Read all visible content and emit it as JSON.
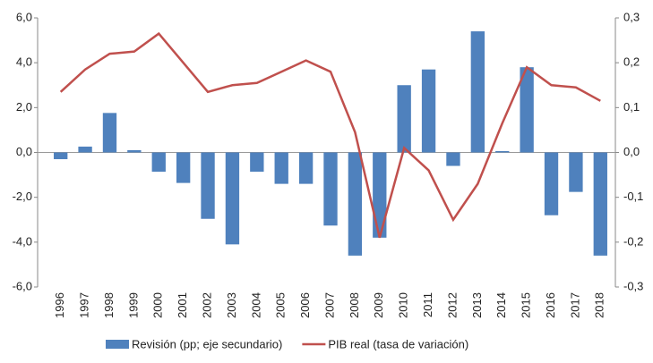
{
  "chart_data": {
    "type": "bar_line",
    "categories": [
      "1996",
      "1997",
      "1998",
      "1999",
      "2000",
      "2001",
      "2002",
      "2003",
      "2004",
      "2005",
      "2006",
      "2007",
      "2008",
      "2009",
      "2010",
      "2011",
      "2012",
      "2013",
      "2014",
      "2015",
      "2016",
      "2017",
      "2018"
    ],
    "series": [
      {
        "name": "Revisión (pp; eje secundario)",
        "type": "bar",
        "axis": "y2",
        "color": "#4f81bd",
        "values": [
          -0.015,
          0.013,
          0.088,
          0.005,
          -0.043,
          -0.068,
          -0.148,
          -0.205,
          -0.043,
          -0.07,
          -0.07,
          -0.163,
          -0.23,
          -0.19,
          0.15,
          0.185,
          -0.03,
          0.27,
          0.003,
          0.19,
          -0.14,
          -0.088,
          -0.23
        ]
      },
      {
        "name": "PIB real (tasa de variación)",
        "type": "line",
        "axis": "y",
        "color": "#c0504d",
        "values": [
          2.7,
          3.7,
          4.4,
          4.5,
          5.3,
          4.0,
          2.7,
          3.0,
          3.1,
          3.6,
          4.1,
          3.6,
          0.9,
          -3.8,
          0.2,
          -0.8,
          -3.0,
          -1.4,
          1.3,
          3.8,
          3.0,
          2.9,
          2.3
        ]
      }
    ],
    "ylim": [
      -6,
      6
    ],
    "yticks": [
      {
        "value": -6,
        "label": "-6,0"
      },
      {
        "value": -4,
        "label": "-4,0"
      },
      {
        "value": -2,
        "label": "-2,0"
      },
      {
        "value": 0,
        "label": "0,0"
      },
      {
        "value": 2,
        "label": "2,0"
      },
      {
        "value": 4,
        "label": "4,0"
      },
      {
        "value": 6,
        "label": "6,0"
      }
    ],
    "y2lim": [
      -0.3,
      0.3
    ],
    "y2ticks": [
      {
        "value": -0.3,
        "label": "-0,3"
      },
      {
        "value": -0.2,
        "label": "-0,2"
      },
      {
        "value": -0.1,
        "label": "-0,1"
      },
      {
        "value": 0,
        "label": "0,0"
      },
      {
        "value": 0.1,
        "label": "0,1"
      },
      {
        "value": 0.2,
        "label": "0,2"
      },
      {
        "value": 0.3,
        "label": "0,3"
      }
    ]
  }
}
